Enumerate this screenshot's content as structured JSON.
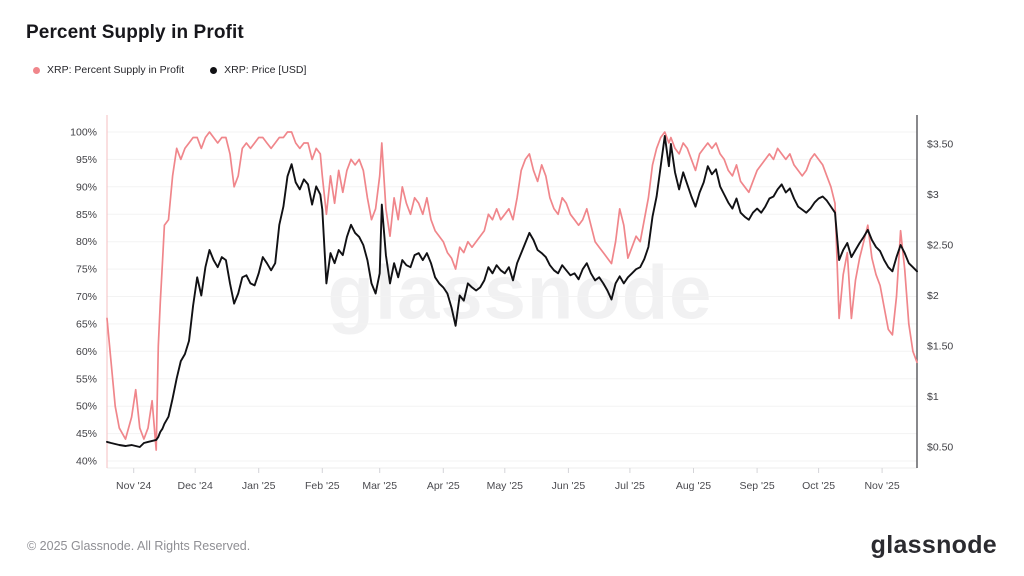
{
  "header": {
    "title": "Percent Supply in Profit"
  },
  "legend": {
    "items": [
      {
        "label": "XRP: Percent Supply in Profit",
        "color": "#f0868b"
      },
      {
        "label": "XRP: Price [USD]",
        "color": "#111114"
      }
    ]
  },
  "watermark_text": "glassnode",
  "footer": {
    "copyright": "© 2025 Glassnode. All Rights Reserved.",
    "brand": "glassnode"
  },
  "colors": {
    "percent_series": "#f0868b",
    "price_series": "#111114",
    "left_axis_line": "#f5bfc2",
    "right_axis_line": "#55555a",
    "gridline": "#f3f3f3",
    "bottom_line": "#ededed",
    "tick_mark": "#d4d4d8",
    "axis_label": "#3f3f44"
  },
  "chart_data": {
    "type": "line",
    "title": "Percent Supply in Profit",
    "grid": "horizontal",
    "legend_position": "top-left",
    "x_ticks": [
      {
        "label": "Nov '24",
        "date": "2024-11-01"
      },
      {
        "label": "Dec '24",
        "date": "2024-12-01"
      },
      {
        "label": "Jan '25",
        "date": "2025-01-01"
      },
      {
        "label": "Feb '25",
        "date": "2025-02-01"
      },
      {
        "label": "Mar '25",
        "date": "2025-03-01"
      },
      {
        "label": "Apr '25",
        "date": "2025-04-01"
      },
      {
        "label": "May '25",
        "date": "2025-05-01"
      },
      {
        "label": "Jun '25",
        "date": "2025-06-01"
      },
      {
        "label": "Jul '25",
        "date": "2025-07-01"
      },
      {
        "label": "Aug '25",
        "date": "2025-08-01"
      },
      {
        "label": "Sep '25",
        "date": "2025-09-01"
      },
      {
        "label": "Oct '25",
        "date": "2025-10-01"
      },
      {
        "label": "Nov '25",
        "date": "2025-11-01"
      }
    ],
    "left_axis": {
      "unit": "%",
      "min": 40,
      "max": 100,
      "ticks": [
        {
          "value": 100,
          "label": "100%"
        },
        {
          "value": 95,
          "label": "95%"
        },
        {
          "value": 90,
          "label": "90%"
        },
        {
          "value": 85,
          "label": "85%"
        },
        {
          "value": 80,
          "label": "80%"
        },
        {
          "value": 75,
          "label": "75%"
        },
        {
          "value": 70,
          "label": "70%"
        },
        {
          "value": 65,
          "label": "65%"
        },
        {
          "value": 60,
          "label": "60%"
        },
        {
          "value": 55,
          "label": "55%"
        },
        {
          "value": 50,
          "label": "50%"
        },
        {
          "value": 45,
          "label": "45%"
        },
        {
          "value": 40,
          "label": "40%"
        }
      ]
    },
    "right_axis": {
      "unit": "USD",
      "min": 0.5,
      "max": 3.5,
      "ticks": [
        {
          "value": 3.5,
          "label": "$3.50"
        },
        {
          "value": 3,
          "label": "$3"
        },
        {
          "value": 2.5,
          "label": "$2.50"
        },
        {
          "value": 2,
          "label": "$2"
        },
        {
          "value": 1.5,
          "label": "$1.50"
        },
        {
          "value": 1,
          "label": "$1"
        },
        {
          "value": 0.5,
          "label": "$0.50"
        }
      ]
    },
    "dates": [
      "2024-10-19",
      "2024-10-21",
      "2024-10-23",
      "2024-10-25",
      "2024-10-28",
      "2024-10-31",
      "2024-11-02",
      "2024-11-04",
      "2024-11-06",
      "2024-11-08",
      "2024-11-10",
      "2024-11-12",
      "2024-11-13",
      "2024-11-14",
      "2024-11-15",
      "2024-11-16",
      "2024-11-18",
      "2024-11-20",
      "2024-11-22",
      "2024-11-24",
      "2024-11-26",
      "2024-11-28",
      "2024-11-30",
      "2024-12-02",
      "2024-12-04",
      "2024-12-06",
      "2024-12-08",
      "2024-12-10",
      "2024-12-12",
      "2024-12-14",
      "2024-12-16",
      "2024-12-18",
      "2024-12-20",
      "2024-12-22",
      "2024-12-24",
      "2024-12-26",
      "2024-12-28",
      "2024-12-30",
      "2025-01-01",
      "2025-01-03",
      "2025-01-05",
      "2025-01-07",
      "2025-01-09",
      "2025-01-11",
      "2025-01-13",
      "2025-01-15",
      "2025-01-17",
      "2025-01-19",
      "2025-01-21",
      "2025-01-23",
      "2025-01-25",
      "2025-01-27",
      "2025-01-29",
      "2025-01-31",
      "2025-02-01",
      "2025-02-03",
      "2025-02-05",
      "2025-02-07",
      "2025-02-09",
      "2025-02-11",
      "2025-02-13",
      "2025-02-15",
      "2025-02-17",
      "2025-02-19",
      "2025-02-21",
      "2025-02-23",
      "2025-02-25",
      "2025-02-27",
      "2025-03-01",
      "2025-03-02",
      "2025-03-04",
      "2025-03-06",
      "2025-03-08",
      "2025-03-10",
      "2025-03-12",
      "2025-03-14",
      "2025-03-16",
      "2025-03-18",
      "2025-03-20",
      "2025-03-22",
      "2025-03-24",
      "2025-03-26",
      "2025-03-28",
      "2025-03-30",
      "2025-04-01",
      "2025-04-03",
      "2025-04-05",
      "2025-04-07",
      "2025-04-09",
      "2025-04-11",
      "2025-04-13",
      "2025-04-15",
      "2025-04-17",
      "2025-04-19",
      "2025-04-21",
      "2025-04-23",
      "2025-04-25",
      "2025-04-27",
      "2025-04-29",
      "2025-05-01",
      "2025-05-03",
      "2025-05-05",
      "2025-05-07",
      "2025-05-09",
      "2025-05-11",
      "2025-05-13",
      "2025-05-15",
      "2025-05-17",
      "2025-05-19",
      "2025-05-21",
      "2025-05-23",
      "2025-05-25",
      "2025-05-27",
      "2025-05-29",
      "2025-05-31",
      "2025-06-02",
      "2025-06-04",
      "2025-06-06",
      "2025-06-08",
      "2025-06-10",
      "2025-06-12",
      "2025-06-14",
      "2025-06-16",
      "2025-06-18",
      "2025-06-20",
      "2025-06-22",
      "2025-06-24",
      "2025-06-26",
      "2025-06-28",
      "2025-06-30",
      "2025-07-02",
      "2025-07-04",
      "2025-07-06",
      "2025-07-08",
      "2025-07-10",
      "2025-07-12",
      "2025-07-14",
      "2025-07-16",
      "2025-07-18",
      "2025-07-20",
      "2025-07-21",
      "2025-07-23",
      "2025-07-25",
      "2025-07-27",
      "2025-07-29",
      "2025-07-31",
      "2025-08-02",
      "2025-08-04",
      "2025-08-06",
      "2025-08-08",
      "2025-08-10",
      "2025-08-12",
      "2025-08-14",
      "2025-08-16",
      "2025-08-18",
      "2025-08-20",
      "2025-08-22",
      "2025-08-24",
      "2025-08-26",
      "2025-08-28",
      "2025-08-30",
      "2025-09-01",
      "2025-09-03",
      "2025-09-05",
      "2025-09-07",
      "2025-09-09",
      "2025-09-11",
      "2025-09-13",
      "2025-09-15",
      "2025-09-17",
      "2025-09-19",
      "2025-09-21",
      "2025-09-23",
      "2025-09-25",
      "2025-09-27",
      "2025-09-29",
      "2025-10-01",
      "2025-10-03",
      "2025-10-05",
      "2025-10-07",
      "2025-10-09",
      "2025-10-11",
      "2025-10-13",
      "2025-10-15",
      "2025-10-17",
      "2025-10-19",
      "2025-10-21",
      "2025-10-23",
      "2025-10-25",
      "2025-10-27",
      "2025-10-29",
      "2025-10-31",
      "2025-11-02",
      "2025-11-04",
      "2025-11-06",
      "2025-11-08",
      "2025-11-10",
      "2025-11-12",
      "2025-11-14",
      "2025-11-16",
      "2025-11-18"
    ],
    "series": [
      {
        "name": "XRP: Percent Supply in Profit",
        "axis": "left",
        "color": "#f0868b",
        "values": [
          66,
          58,
          50,
          46,
          44,
          48,
          53,
          46,
          44,
          46,
          51,
          42,
          61,
          69,
          76,
          83,
          84,
          92,
          97,
          95,
          97,
          98,
          99,
          99,
          97,
          99,
          100,
          99,
          98,
          99,
          99,
          96,
          90,
          92,
          97,
          98,
          97,
          98,
          99,
          99,
          98,
          97,
          98,
          99,
          99,
          100,
          100,
          98,
          97,
          98,
          98,
          95,
          97,
          96,
          92,
          85,
          92,
          87,
          93,
          89,
          93,
          95,
          94,
          95,
          93,
          88,
          84,
          86,
          92,
          98,
          86,
          81,
          88,
          84,
          90,
          87,
          85,
          88,
          87,
          85,
          88,
          84,
          82,
          81,
          80,
          78,
          77,
          75,
          79,
          78,
          80,
          79,
          80,
          81,
          82,
          85,
          84,
          86,
          84,
          85,
          86,
          84,
          88,
          93,
          95,
          96,
          93,
          91,
          94,
          92,
          88,
          86,
          85,
          88,
          87,
          85,
          84,
          83,
          84,
          86,
          83,
          80,
          79,
          78,
          77,
          76,
          80,
          86,
          83,
          77,
          79,
          81,
          80,
          84,
          88,
          94,
          97,
          99,
          100,
          98,
          99,
          97,
          96,
          98,
          97,
          95,
          93,
          96,
          97,
          98,
          97,
          98,
          96,
          95,
          93,
          92,
          94,
          91,
          90,
          89,
          91,
          93,
          94,
          95,
          96,
          95,
          97,
          96,
          95,
          96,
          94,
          93,
          92,
          93,
          95,
          96,
          95,
          94,
          92,
          90,
          87,
          66,
          74,
          78,
          66,
          73,
          77,
          80,
          83,
          77,
          74,
          72,
          68,
          64,
          63,
          70,
          82,
          75,
          65,
          60,
          58
        ]
      },
      {
        "name": "XRP: Price [USD]",
        "axis": "right",
        "color": "#111114",
        "values": [
          0.55,
          0.54,
          0.53,
          0.52,
          0.51,
          0.52,
          0.51,
          0.5,
          0.54,
          0.55,
          0.56,
          0.57,
          0.6,
          0.65,
          0.68,
          0.73,
          0.8,
          0.98,
          1.18,
          1.35,
          1.42,
          1.55,
          1.9,
          2.18,
          2.0,
          2.28,
          2.45,
          2.35,
          2.28,
          2.38,
          2.35,
          2.12,
          1.92,
          2.02,
          2.18,
          2.2,
          2.12,
          2.1,
          2.22,
          2.38,
          2.32,
          2.25,
          2.32,
          2.7,
          2.88,
          3.18,
          3.3,
          3.12,
          3.05,
          3.15,
          3.1,
          2.9,
          3.08,
          3.0,
          2.85,
          2.12,
          2.42,
          2.32,
          2.45,
          2.4,
          2.58,
          2.7,
          2.62,
          2.58,
          2.5,
          2.35,
          2.12,
          2.02,
          2.22,
          2.9,
          2.4,
          2.12,
          2.32,
          2.18,
          2.35,
          2.3,
          2.28,
          2.4,
          2.42,
          2.35,
          2.42,
          2.32,
          2.18,
          2.12,
          2.08,
          2.02,
          1.88,
          1.7,
          2.0,
          1.95,
          2.12,
          2.08,
          2.05,
          2.08,
          2.15,
          2.28,
          2.22,
          2.3,
          2.25,
          2.22,
          2.28,
          2.15,
          2.32,
          2.42,
          2.52,
          2.62,
          2.55,
          2.45,
          2.42,
          2.38,
          2.3,
          2.25,
          2.22,
          2.3,
          2.25,
          2.2,
          2.22,
          2.16,
          2.26,
          2.32,
          2.22,
          2.15,
          2.18,
          2.12,
          2.05,
          1.96,
          2.12,
          2.19,
          2.12,
          2.18,
          2.22,
          2.26,
          2.28,
          2.36,
          2.48,
          2.78,
          2.98,
          3.28,
          3.58,
          3.28,
          3.5,
          3.22,
          3.05,
          3.22,
          3.1,
          2.98,
          2.88,
          3.02,
          3.12,
          3.28,
          3.2,
          3.25,
          3.08,
          3.0,
          2.92,
          2.86,
          2.96,
          2.82,
          2.78,
          2.75,
          2.82,
          2.86,
          2.82,
          2.88,
          2.96,
          2.98,
          3.05,
          3.1,
          3.02,
          3.06,
          2.96,
          2.88,
          2.85,
          2.82,
          2.86,
          2.92,
          2.96,
          2.98,
          2.94,
          2.88,
          2.82,
          2.35,
          2.45,
          2.52,
          2.38,
          2.45,
          2.52,
          2.58,
          2.65,
          2.55,
          2.48,
          2.44,
          2.35,
          2.28,
          2.24,
          2.38,
          2.5,
          2.42,
          2.32,
          2.28,
          2.24
        ]
      }
    ]
  }
}
